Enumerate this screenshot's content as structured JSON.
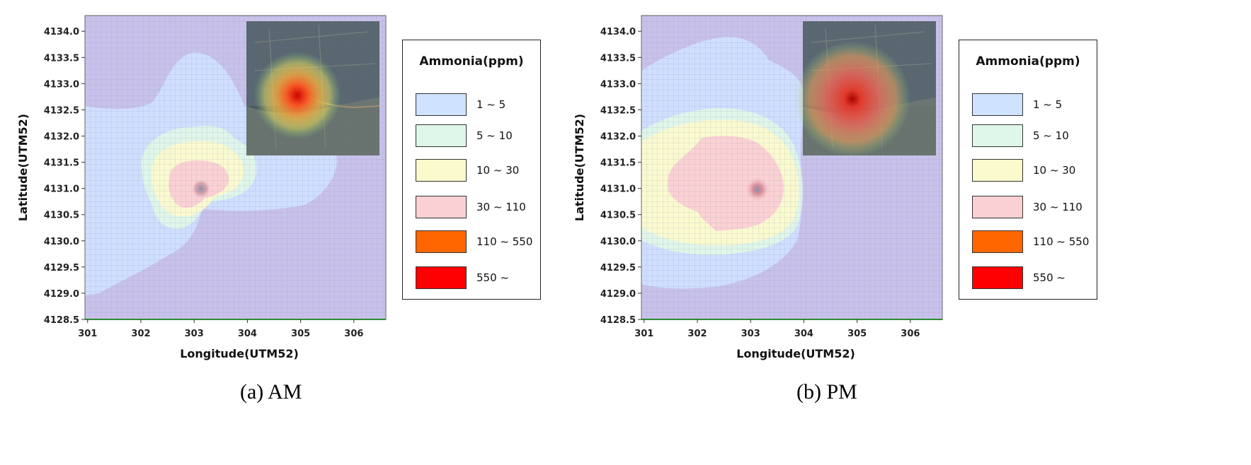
{
  "legend": {
    "title": "Ammonia(ppm)",
    "items": [
      {
        "label": "1 ~ 5",
        "color": "#cfe2ff"
      },
      {
        "label": "5 ~ 10",
        "color": "#dff7e8"
      },
      {
        "label": "10 ~ 30",
        "color": "#fbfacd"
      },
      {
        "label": "30 ~ 110",
        "color": "#fbd0d4"
      },
      {
        "label": "110 ~ 550",
        "color": "#ff6600"
      },
      {
        "label": "550 ~",
        "color": "#ff0000"
      }
    ]
  },
  "chart_data": [
    {
      "type": "heatmap",
      "caption": "(a) AM",
      "xlabel": "Longitude(UTM52)",
      "ylabel": "Latitude(UTM52)",
      "xlim": [
        300.95,
        306.6
      ],
      "ylim": [
        4128.5,
        4134.3
      ],
      "xticks": [
        "301",
        "302",
        "303",
        "304",
        "305",
        "306"
      ],
      "yticks": [
        "4128.5",
        "4129.0",
        "4129.5",
        "4130.0",
        "4130.5",
        "4131.0",
        "4131.5",
        "4132.0",
        "4132.5",
        "4133.0",
        "4133.5",
        "4134.0"
      ],
      "grid": true,
      "source": {
        "x": 303.1,
        "y": 4130.97
      },
      "inset": "top-right"
    },
    {
      "type": "heatmap",
      "caption": "(b) PM",
      "xlabel": "Longitude(UTM52)",
      "ylabel": "Latitude(UTM52)",
      "xlim": [
        300.95,
        306.6
      ],
      "ylim": [
        4128.5,
        4134.3
      ],
      "xticks": [
        "301",
        "302",
        "303",
        "304",
        "305",
        "306"
      ],
      "yticks": [
        "4128.5",
        "4129.0",
        "4129.5",
        "4130.0",
        "4130.5",
        "4131.0",
        "4131.5",
        "4132.0",
        "4132.5",
        "4133.0",
        "4133.5",
        "4134.0"
      ],
      "grid": true,
      "source": {
        "x": 303.1,
        "y": 4130.97
      },
      "inset": "top-right"
    }
  ]
}
